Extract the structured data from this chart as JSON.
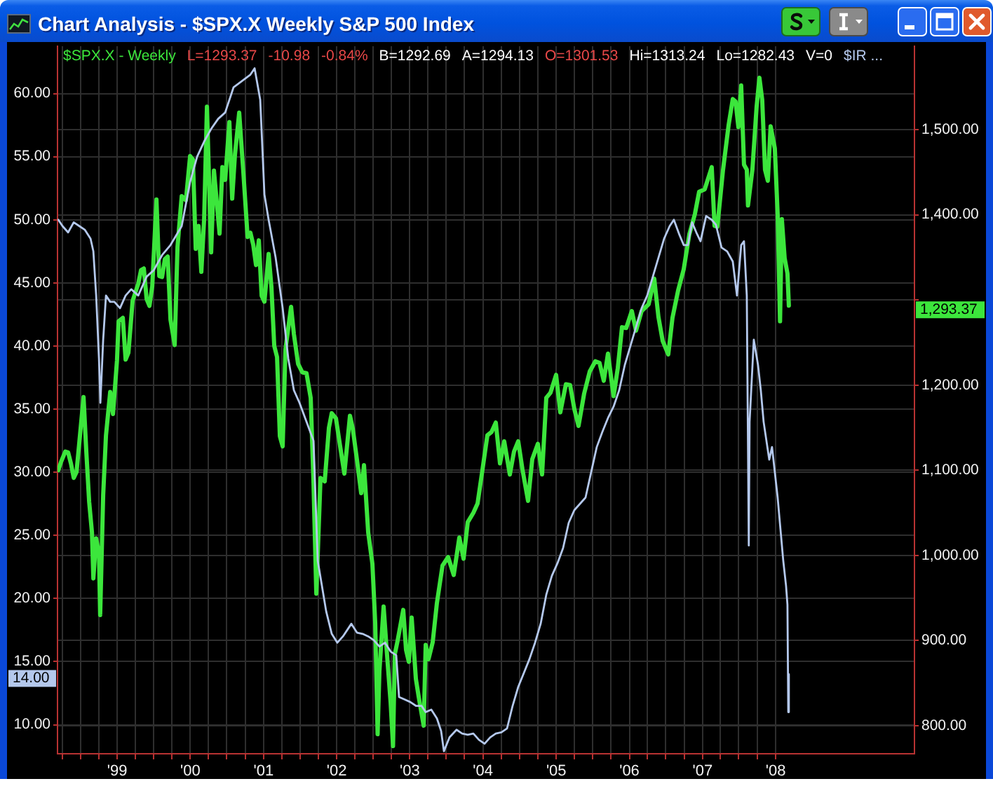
{
  "chart_data": {
    "type": "line",
    "title": "Chart Analysis - $SPX.X Weekly S&P 500 Index",
    "xlim": [
      "1998-03-09",
      "2009-11-24"
    ],
    "xticks": [
      {
        "value": "1998-04-01",
        "label": null
      },
      {
        "value": "1998-07-01",
        "label": null
      },
      {
        "value": "1998-10-01",
        "label": null
      },
      {
        "value": "1999-01-01",
        "label": "'99"
      },
      {
        "value": "1999-04-01",
        "label": null
      },
      {
        "value": "1999-07-01",
        "label": null
      },
      {
        "value": "1999-10-01",
        "label": null
      },
      {
        "value": "2000-01-01",
        "label": "'00"
      },
      {
        "value": "2000-04-01",
        "label": null
      },
      {
        "value": "2000-07-01",
        "label": null
      },
      {
        "value": "2000-10-01",
        "label": null
      },
      {
        "value": "2001-01-01",
        "label": "'01"
      },
      {
        "value": "2001-04-01",
        "label": null
      },
      {
        "value": "2001-07-01",
        "label": null
      },
      {
        "value": "2001-10-01",
        "label": null
      },
      {
        "value": "2002-01-01",
        "label": "'02"
      },
      {
        "value": "2002-04-01",
        "label": null
      },
      {
        "value": "2002-07-01",
        "label": null
      },
      {
        "value": "2002-10-01",
        "label": null
      },
      {
        "value": "2003-01-01",
        "label": "'03"
      },
      {
        "value": "2003-04-01",
        "label": null
      },
      {
        "value": "2003-07-01",
        "label": null
      },
      {
        "value": "2003-10-01",
        "label": null
      },
      {
        "value": "2004-01-01",
        "label": "'04"
      },
      {
        "value": "2004-04-01",
        "label": null
      },
      {
        "value": "2004-07-01",
        "label": null
      },
      {
        "value": "2004-10-01",
        "label": null
      },
      {
        "value": "2005-01-01",
        "label": "'05"
      },
      {
        "value": "2005-04-01",
        "label": null
      },
      {
        "value": "2005-07-01",
        "label": null
      },
      {
        "value": "2005-10-01",
        "label": null
      },
      {
        "value": "2006-01-01",
        "label": "'06"
      },
      {
        "value": "2006-04-01",
        "label": null
      },
      {
        "value": "2006-07-01",
        "label": null
      },
      {
        "value": "2006-10-01",
        "label": null
      },
      {
        "value": "2007-01-01",
        "label": "'07"
      },
      {
        "value": "2007-04-01",
        "label": null
      },
      {
        "value": "2007-07-01",
        "label": null
      },
      {
        "value": "2007-10-01",
        "label": null
      },
      {
        "value": "2008-01-01",
        "label": "'08"
      }
    ],
    "ylim": [
      7.7,
      63.75
    ],
    "yticks": [
      {
        "value": 10,
        "label": "10.00"
      },
      {
        "value": 15,
        "label": "15.00"
      },
      {
        "value": 20,
        "label": "20.00"
      },
      {
        "value": 25,
        "label": "25.00"
      },
      {
        "value": 30,
        "label": "30.00"
      },
      {
        "value": 35,
        "label": "35.00"
      },
      {
        "value": 40,
        "label": "40.00"
      },
      {
        "value": 45,
        "label": "45.00"
      },
      {
        "value": 50,
        "label": "50.00"
      },
      {
        "value": 55,
        "label": "55.00"
      },
      {
        "value": 60,
        "label": "60.00"
      }
    ],
    "y2lim": [
      767,
      1598
    ],
    "y2ticks": [
      {
        "value": 800,
        "label": "800.00"
      },
      {
        "value": 900,
        "label": "900.00"
      },
      {
        "value": 1000,
        "label": "1,000.00"
      },
      {
        "value": 1100,
        "label": "1,100.00"
      },
      {
        "value": 1200,
        "label": "1,200.00"
      },
      {
        "value": 1300,
        "label": null
      },
      {
        "value": 1400,
        "label": "1,400.00"
      },
      {
        "value": 1500,
        "label": "1,500.00"
      }
    ],
    "grid": true,
    "legend": "top left",
    "marker": "none",
    "annotations": [
      "L=1293.37",
      "-10.98",
      "-0.84%",
      "B=1292.69",
      "A=1294.13",
      "O=1301.53",
      "Hi=1313.24",
      "Lo=1282.43",
      "V=0",
      "14.00",
      "1,293.37"
    ],
    "series": [
      {
        "name": "$SPX.X - Weekly",
        "color": "#3ce63c",
        "axis": "y2",
        "x": [
          "1998-03-13",
          "1998-03-27",
          "1998-04-17",
          "1998-05-01",
          "1998-05-15",
          "1998-05-29",
          "1998-06-12",
          "1998-06-26",
          "1998-07-17",
          "1998-07-31",
          "1998-08-14",
          "1998-08-28",
          "1998-09-04",
          "1998-09-18",
          "1998-10-02",
          "1998-10-08",
          "1998-10-23",
          "1998-11-06",
          "1998-11-27",
          "1998-12-11",
          "1998-12-31",
          "1999-01-08",
          "1999-01-29",
          "1999-02-12",
          "1999-02-26",
          "1999-03-19",
          "1999-04-16",
          "1999-04-30",
          "1999-05-14",
          "1999-05-28",
          "1999-06-11",
          "1999-06-25",
          "1999-07-16",
          "1999-07-30",
          "1999-08-13",
          "1999-08-27",
          "1999-09-10",
          "1999-09-24",
          "1999-10-15",
          "1999-10-29",
          "1999-11-19",
          "1999-12-10",
          "1999-12-31",
          "2000-01-14",
          "2000-01-28",
          "2000-02-11",
          "2000-02-25",
          "2000-03-10",
          "2000-03-24",
          "2000-04-14",
          "2000-04-28",
          "2000-05-26",
          "2000-06-09",
          "2000-06-23",
          "2000-07-14",
          "2000-07-28",
          "2000-08-11",
          "2000-09-01",
          "2000-09-22",
          "2000-10-13",
          "2000-10-27",
          "2000-11-10",
          "2000-11-24",
          "2000-12-08",
          "2000-12-22",
          "2001-01-05",
          "2001-01-26",
          "2001-02-09",
          "2001-02-23",
          "2001-03-09",
          "2001-03-23",
          "2001-04-06",
          "2001-04-20",
          "2001-05-18",
          "2001-06-01",
          "2001-06-22",
          "2001-07-13",
          "2001-08-03",
          "2001-08-24",
          "2001-09-07",
          "2001-09-21",
          "2001-10-12",
          "2001-11-02",
          "2001-11-23",
          "2001-12-07",
          "2001-12-28",
          "2002-01-18",
          "2002-02-08",
          "2002-03-08",
          "2002-03-22",
          "2002-04-12",
          "2002-05-03",
          "2002-05-17",
          "2002-06-07",
          "2002-06-28",
          "2002-07-12",
          "2002-07-24",
          "2002-08-02",
          "2002-08-23",
          "2002-09-06",
          "2002-09-27",
          "2002-10-09",
          "2002-10-18",
          "2002-11-01",
          "2002-11-29",
          "2002-12-13",
          "2002-12-27",
          "2003-01-10",
          "2003-01-31",
          "2003-02-14",
          "2003-03-11",
          "2003-03-21",
          "2003-04-04",
          "2003-04-25",
          "2003-05-16",
          "2003-06-13",
          "2003-07-11",
          "2003-08-08",
          "2003-09-05",
          "2003-09-26",
          "2003-10-17",
          "2003-11-14",
          "2003-12-05",
          "2003-12-26",
          "2004-01-23",
          "2004-02-13",
          "2004-03-05",
          "2004-03-26",
          "2004-04-16",
          "2004-05-14",
          "2004-06-04",
          "2004-06-25",
          "2004-07-16",
          "2004-08-13",
          "2004-09-03",
          "2004-10-01",
          "2004-10-22",
          "2004-11-12",
          "2004-12-03",
          "2004-12-31",
          "2005-01-21",
          "2005-02-18",
          "2005-03-11",
          "2005-04-01",
          "2005-04-22",
          "2005-05-20",
          "2005-06-17",
          "2005-07-15",
          "2005-08-05",
          "2005-08-26",
          "2005-09-16",
          "2005-10-14",
          "2005-11-04",
          "2005-11-25",
          "2005-12-16",
          "2006-01-13",
          "2006-02-03",
          "2006-03-03",
          "2006-04-07",
          "2006-05-05",
          "2006-05-26",
          "2006-06-16",
          "2006-07-14",
          "2006-08-04",
          "2006-09-01",
          "2006-09-29",
          "2006-10-27",
          "2006-11-24",
          "2006-12-15",
          "2007-01-12",
          "2007-02-16",
          "2007-03-02",
          "2007-03-16",
          "2007-04-13",
          "2007-05-11",
          "2007-06-01",
          "2007-06-15",
          "2007-06-29",
          "2007-07-13",
          "2007-07-27",
          "2007-08-10",
          "2007-08-16",
          "2007-09-07",
          "2007-09-28",
          "2007-10-12",
          "2007-10-26",
          "2007-11-09",
          "2007-11-23",
          "2007-12-07",
          "2007-12-28",
          "2008-01-11",
          "2008-01-23",
          "2008-02-01",
          "2008-02-15",
          "2008-02-29",
          "2008-03-07"
        ],
        "values": [
          1100,
          1110,
          1122,
          1121,
          1108,
          1091,
          1098,
          1133,
          1186,
          1121,
          1063,
          1027,
          973,
          1020,
          1002,
          930,
          1071,
          1141,
          1192,
          1166,
          1229,
          1275,
          1279,
          1230,
          1238,
          1299,
          1319,
          1335,
          1337,
          1301,
          1293,
          1316,
          1418,
          1328,
          1327,
          1348,
          1351,
          1277,
          1247,
          1362,
          1422,
          1417,
          1469,
          1465,
          1360,
          1387,
          1333,
          1395,
          1527,
          1356,
          1452,
          1378,
          1456,
          1441,
          1509,
          1419,
          1471,
          1520,
          1449,
          1374,
          1379,
          1365,
          1341,
          1370,
          1305,
          1298,
          1354,
          1315,
          1246,
          1233,
          1140,
          1128,
          1242,
          1292,
          1260,
          1225,
          1215,
          1214,
          1185,
          1085,
          955,
          1091,
          1087,
          1150,
          1167,
          1161,
          1128,
          1096,
          1164,
          1149,
          1112,
          1073,
          1106,
          1027,
          990,
          921,
          790,
          864,
          940,
          893,
          827,
          776,
          884,
          900,
          936,
          889,
          875,
          927,
          855,
          834,
          800,
          895,
          878,
          898,
          944,
          988,
          998,
          977,
          1021,
          996,
          1039,
          1050,
          1061,
          1095,
          1141,
          1145,
          1156,
          1108,
          1134,
          1095,
          1122,
          1134,
          1101,
          1064,
          1113,
          1131,
          1095,
          1185,
          1191,
          1212,
          1168,
          1201,
          1200,
          1172,
          1152,
          1190,
          1216,
          1228,
          1226,
          1205,
          1237,
          1187,
          1220,
          1268,
          1267,
          1287,
          1264,
          1287,
          1295,
          1325,
          1280,
          1252,
          1236,
          1279,
          1311,
          1336,
          1377,
          1401,
          1427,
          1430,
          1456,
          1387,
          1386,
          1452,
          1505,
          1536,
          1533,
          1503,
          1552,
          1459,
          1453,
          1411,
          1453,
          1527,
          1561,
          1535,
          1453,
          1440,
          1504,
          1478,
          1401,
          1275,
          1395,
          1349,
          1331,
          1293.37
        ]
      },
      {
        "name": "$IR ...",
        "color": "#b4c8ec",
        "axis": "y",
        "x": [
          "1998-03-13",
          "1998-04-03",
          "1998-05-01",
          "1998-05-29",
          "1998-06-26",
          "1998-07-24",
          "1998-08-21",
          "1998-09-04",
          "1998-09-18",
          "1998-10-02",
          "1998-10-09",
          "1998-10-23",
          "1998-11-06",
          "1998-11-27",
          "1998-12-18",
          "1999-01-15",
          "1999-02-12",
          "1999-03-12",
          "1999-04-16",
          "1999-05-28",
          "1999-07-02",
          "1999-08-13",
          "1999-09-24",
          "1999-11-19",
          "1999-12-31",
          "2000-02-04",
          "2000-03-10",
          "2000-04-14",
          "2000-05-19",
          "2000-06-23",
          "2000-08-04",
          "2000-09-15",
          "2000-10-27",
          "2000-11-17",
          "2000-12-15",
          "2001-01-05",
          "2001-01-26",
          "2001-03-02",
          "2001-04-06",
          "2001-05-04",
          "2001-06-01",
          "2001-06-29",
          "2001-08-03",
          "2001-09-07",
          "2001-09-28",
          "2001-10-19",
          "2001-11-09",
          "2001-12-07",
          "2002-01-04",
          "2002-02-01",
          "2002-03-15",
          "2002-04-12",
          "2002-05-10",
          "2002-06-07",
          "2002-07-05",
          "2002-08-02",
          "2002-08-30",
          "2002-09-27",
          "2002-10-25",
          "2002-11-08",
          "2002-12-06",
          "2003-01-03",
          "2003-01-31",
          "2003-02-28",
          "2003-03-21",
          "2003-04-18",
          "2003-05-16",
          "2003-06-06",
          "2003-06-20",
          "2003-07-18",
          "2003-08-22",
          "2003-09-19",
          "2003-10-17",
          "2003-11-14",
          "2003-12-12",
          "2004-01-09",
          "2004-02-06",
          "2004-03-05",
          "2004-04-02",
          "2004-04-30",
          "2004-05-28",
          "2004-06-25",
          "2004-07-23",
          "2004-08-20",
          "2004-09-17",
          "2004-10-15",
          "2004-11-12",
          "2004-12-10",
          "2005-01-07",
          "2005-02-04",
          "2005-03-04",
          "2005-04-01",
          "2005-04-29",
          "2005-05-27",
          "2005-06-24",
          "2005-07-22",
          "2005-08-19",
          "2005-09-16",
          "2005-10-14",
          "2005-11-11",
          "2005-12-09",
          "2006-01-06",
          "2006-02-03",
          "2006-03-03",
          "2006-03-31",
          "2006-04-28",
          "2006-05-26",
          "2006-06-23",
          "2006-07-21",
          "2006-08-11",
          "2006-09-08",
          "2006-09-29",
          "2006-10-20",
          "2006-11-10",
          "2006-12-01",
          "2006-12-22",
          "2007-01-19",
          "2007-02-16",
          "2007-03-09",
          "2007-04-06",
          "2007-05-04",
          "2007-06-01",
          "2007-06-22",
          "2007-07-13",
          "2007-07-27",
          "2007-08-10",
          "2007-08-20",
          "2007-08-24",
          "2007-09-14",
          "2007-10-05",
          "2007-10-19",
          "2007-11-02",
          "2007-11-16",
          "2007-11-30",
          "2007-12-14",
          "2007-12-28",
          "2008-01-11",
          "2008-01-25",
          "2008-02-08",
          "2008-02-22",
          "2008-02-29",
          "2008-03-04",
          "2008-03-07"
        ],
        "values": [
          50.0,
          49.5,
          49.0,
          49.8,
          49.5,
          49.2,
          48.5,
          47.5,
          44.0,
          39.0,
          35.5,
          40.5,
          44.0,
          43.5,
          43.5,
          43.0,
          44.0,
          44.5,
          44.0,
          45.5,
          46.0,
          47.2,
          48.0,
          49.5,
          53.0,
          55.0,
          56.2,
          57.2,
          58.0,
          58.5,
          60.5,
          61.0,
          61.5,
          62.0,
          59.5,
          52.0,
          50.0,
          47.0,
          43.0,
          39.0,
          36.5,
          35.5,
          34.0,
          32.5,
          23.0,
          21.0,
          19.0,
          17.2,
          16.5,
          17.0,
          18.0,
          17.3,
          17.2,
          17.0,
          16.7,
          16.2,
          16.5,
          15.8,
          15.5,
          12.2,
          12.0,
          11.8,
          11.5,
          11.5,
          11.0,
          11.2,
          10.5,
          9.5,
          7.9,
          9.0,
          9.6,
          9.3,
          9.2,
          9.3,
          8.8,
          8.5,
          9.0,
          9.3,
          9.4,
          9.7,
          11.5,
          13.0,
          14.1,
          15.2,
          16.5,
          18.0,
          20.3,
          21.8,
          22.8,
          24.0,
          26.0,
          27.0,
          27.5,
          28.0,
          30.0,
          32.0,
          33.2,
          34.3,
          35.2,
          36.5,
          38.5,
          40.0,
          41.5,
          43.0,
          44.0,
          45.5,
          47.0,
          48.5,
          49.5,
          50.0,
          48.8,
          48.0,
          48.0,
          49.8,
          49.0,
          48.3,
          50.3,
          50.0,
          49.6,
          47.8,
          47.5,
          46.7,
          44.0,
          48.0,
          48.3,
          44.0,
          24.2,
          34.0,
          40.5,
          38.5,
          36.5,
          34.0,
          32.5,
          31.0,
          32.0,
          30.0,
          28.0,
          25.5,
          23.0,
          21.0,
          19.5,
          11.0,
          14.0
        ]
      }
    ]
  }
}
